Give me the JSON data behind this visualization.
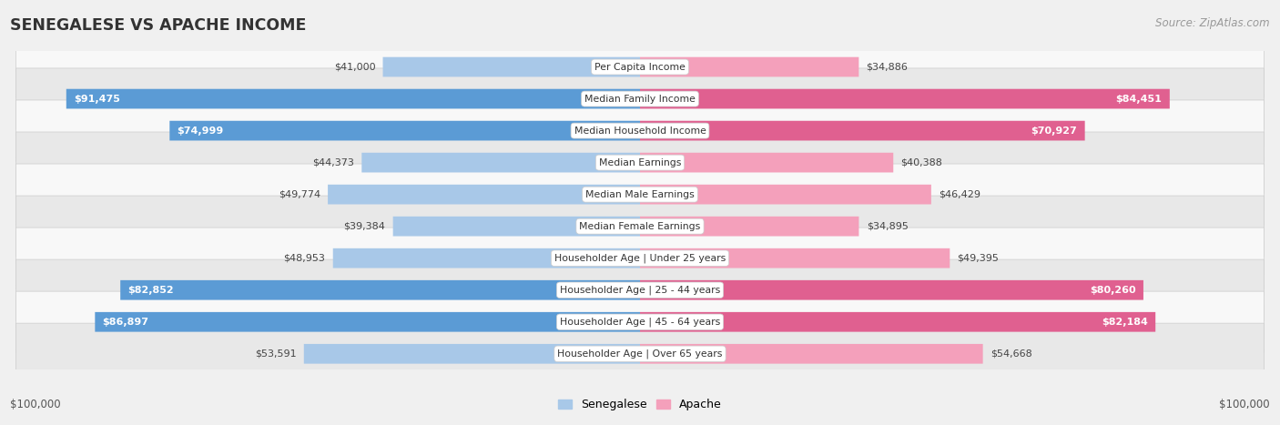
{
  "title": "SENEGALESE VS APACHE INCOME",
  "source": "Source: ZipAtlas.com",
  "categories": [
    "Per Capita Income",
    "Median Family Income",
    "Median Household Income",
    "Median Earnings",
    "Median Male Earnings",
    "Median Female Earnings",
    "Householder Age | Under 25 years",
    "Householder Age | 25 - 44 years",
    "Householder Age | 45 - 64 years",
    "Householder Age | Over 65 years"
  ],
  "senegalese_values": [
    41000,
    91475,
    74999,
    44373,
    49774,
    39384,
    48953,
    82852,
    86897,
    53591
  ],
  "apache_values": [
    34886,
    84451,
    70927,
    40388,
    46429,
    34895,
    49395,
    80260,
    82184,
    54668
  ],
  "senegalese_labels": [
    "$41,000",
    "$91,475",
    "$74,999",
    "$44,373",
    "$49,774",
    "$39,384",
    "$48,953",
    "$82,852",
    "$86,897",
    "$53,591"
  ],
  "apache_labels": [
    "$34,886",
    "$84,451",
    "$70,927",
    "$40,388",
    "$46,429",
    "$34,895",
    "$49,395",
    "$80,260",
    "$82,184",
    "$54,668"
  ],
  "max_value": 100000,
  "senegalese_color_light": "#a8c8e8",
  "senegalese_color_dark": "#5b9bd5",
  "apache_color_light": "#f4a0bb",
  "apache_color_dark": "#e06090",
  "inside_label_threshold": 60000,
  "background_color": "#f0f0f0",
  "row_bg_even": "#f8f8f8",
  "row_bg_odd": "#e8e8e8",
  "xlabel_left": "$100,000",
  "xlabel_right": "$100,000",
  "legend_senegalese": "Senegalese",
  "legend_apache": "Apache"
}
